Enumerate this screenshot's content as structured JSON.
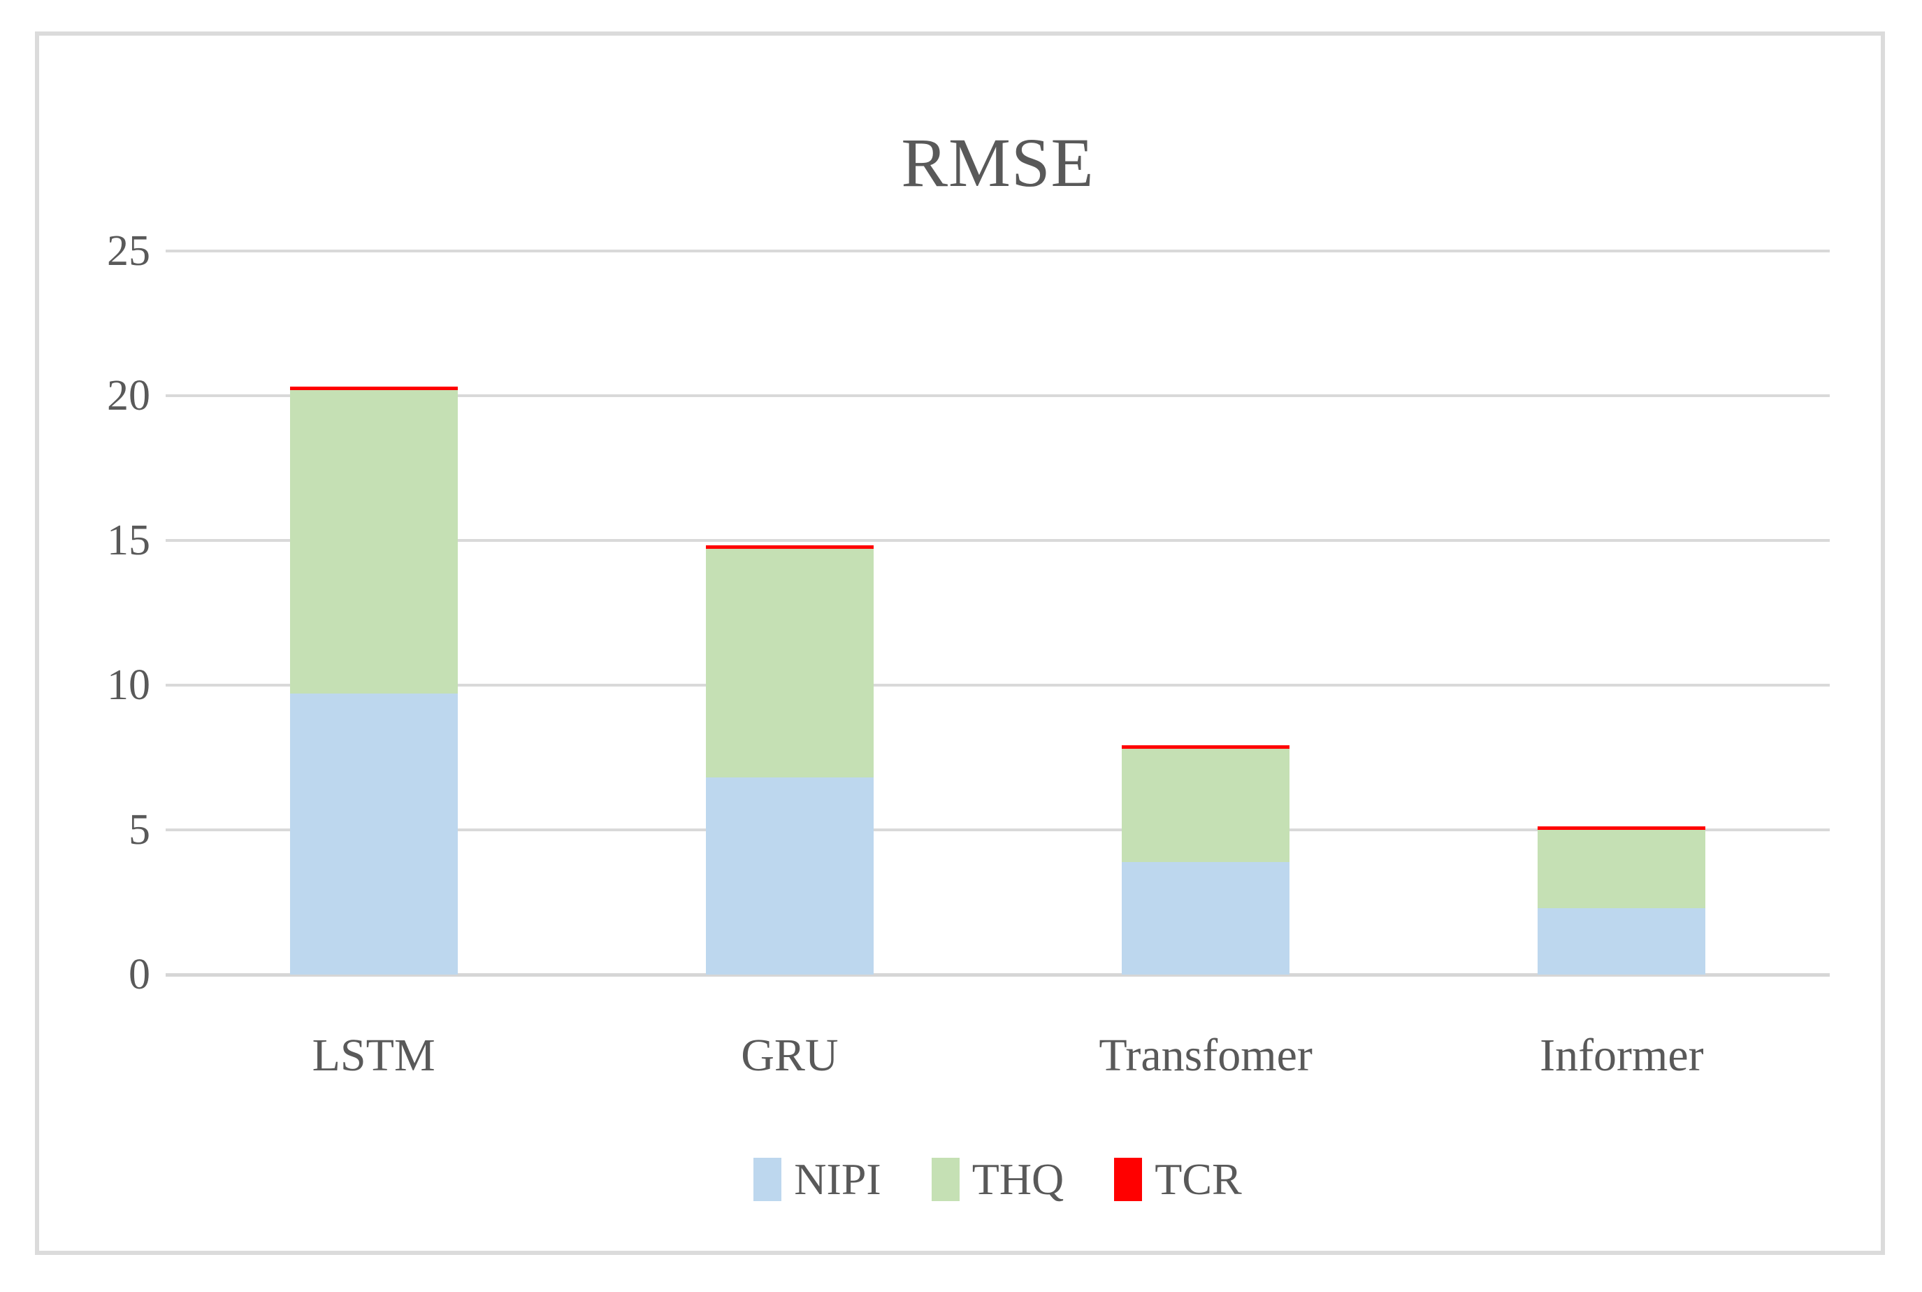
{
  "chart_data": {
    "type": "bar",
    "stacked": true,
    "title": "RMSE",
    "categories": [
      "LSTM",
      "GRU",
      "Transfomer",
      "Informer"
    ],
    "series": [
      {
        "name": "NIPI",
        "color": "#BDD7EE",
        "values": [
          9.7,
          6.8,
          3.9,
          2.3
        ]
      },
      {
        "name": "THQ",
        "color": "#C5E0B4",
        "values": [
          10.5,
          7.9,
          3.9,
          2.7
        ]
      },
      {
        "name": "TCR",
        "color": "#FF0000",
        "values": [
          0.12,
          0.12,
          0.12,
          0.12
        ]
      }
    ],
    "stack_totals": [
      20.3,
      14.8,
      7.9,
      5.1
    ],
    "ylim": [
      0,
      25
    ],
    "yticks": [
      0,
      5,
      10,
      15,
      20,
      25
    ],
    "xlabel": "",
    "ylabel": "",
    "grid": true,
    "legend_position": "bottom",
    "text_color": "#595959",
    "gridline_color": "#D9D9D9",
    "frame_border_color": "#DBDBDB",
    "background_color": "#FFFFFF"
  }
}
